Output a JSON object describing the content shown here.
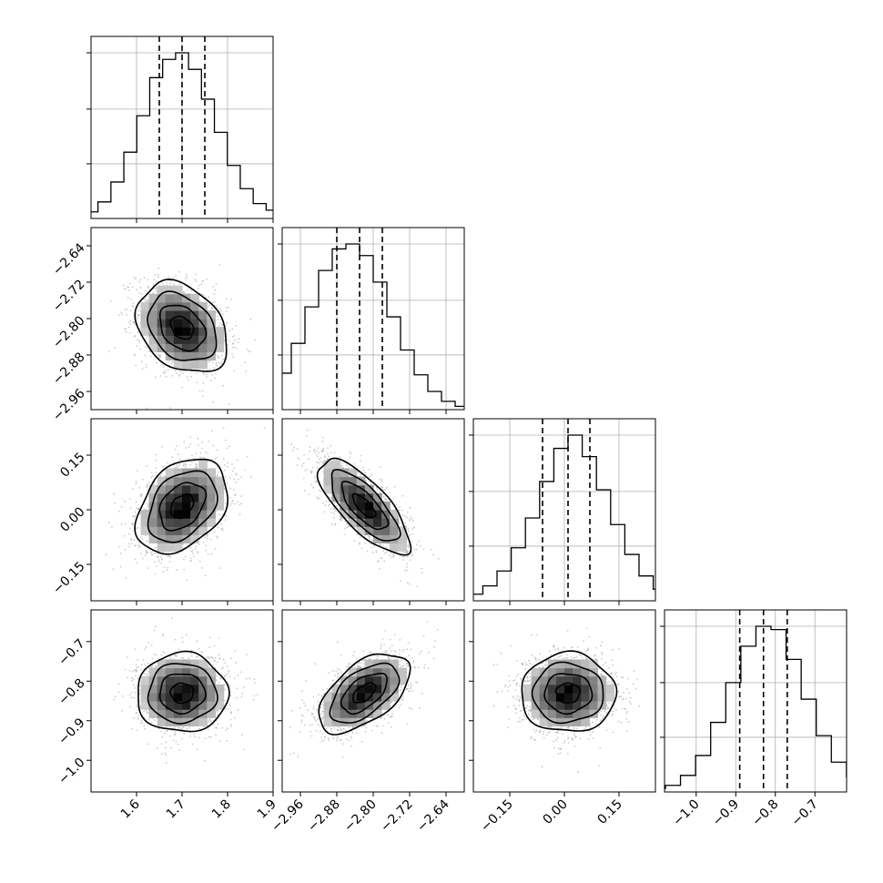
{
  "chart_data": {
    "type": "corner",
    "parameters": [
      {
        "id": "p0",
        "range": [
          1.5,
          1.9
        ],
        "ticks": [
          1.6,
          1.7,
          1.8,
          1.9
        ],
        "tick_labels": [
          "1.6",
          "1.7",
          "1.8",
          "1.9"
        ],
        "quantiles": [
          1.65,
          1.7,
          1.75
        ],
        "hist_counts": [
          1,
          2,
          4,
          10,
          22,
          40,
          62,
          85,
          96,
          100,
          90,
          72,
          52,
          32,
          18,
          9,
          5,
          2,
          1
        ]
      },
      {
        "id": "p1",
        "range": [
          -3.0,
          -2.6
        ],
        "ticks": [
          -2.96,
          -2.88,
          -2.8,
          -2.72,
          -2.64
        ],
        "tick_labels": [
          "−2.96",
          "−2.88",
          "−2.80",
          "−2.72",
          "−2.64"
        ],
        "quantiles": [
          -2.88,
          -2.83,
          -2.78
        ],
        "hist_counts": [
          2,
          4,
          10,
          22,
          40,
          62,
          84,
          97,
          100,
          93,
          77,
          56,
          36,
          21,
          11,
          5,
          2,
          1
        ]
      },
      {
        "id": "p2",
        "range": [
          -0.25,
          0.25
        ],
        "ticks": [
          -0.15,
          0.0,
          0.15
        ],
        "tick_labels": [
          "−0.15",
          "0.00",
          "0.15"
        ],
        "quantiles": [
          -0.06,
          0.01,
          0.07
        ],
        "hist_counts": [
          1,
          2,
          4,
          9,
          18,
          32,
          50,
          72,
          92,
          100,
          87,
          67,
          46,
          28,
          15,
          7,
          3,
          1
        ]
      },
      {
        "id": "p3",
        "range": [
          -1.08,
          -0.62
        ],
        "ticks": [
          -1.0,
          -0.9,
          -0.8,
          -0.7
        ],
        "tick_labels": [
          "−1.0",
          "−0.9",
          "−0.8",
          "−0.7"
        ],
        "quantiles": [
          -0.89,
          -0.83,
          -0.77
        ],
        "hist_counts": [
          1,
          2,
          4,
          10,
          22,
          42,
          66,
          88,
          100,
          98,
          80,
          56,
          34,
          18,
          9,
          4,
          2
        ]
      }
    ],
    "pairs": [
      {
        "x": "p0",
        "y": "p1",
        "mean": [
          1.7,
          -2.82
        ],
        "sd": [
          0.05,
          0.05
        ],
        "corr": -0.3
      },
      {
        "x": "p0",
        "y": "p2",
        "mean": [
          1.7,
          0.01
        ],
        "sd": [
          0.05,
          0.065
        ],
        "corr": 0.35
      },
      {
        "x": "p1",
        "y": "p2",
        "mean": [
          -2.82,
          0.01
        ],
        "sd": [
          0.05,
          0.065
        ],
        "corr": -0.75
      },
      {
        "x": "p0",
        "y": "p3",
        "mean": [
          1.7,
          -0.83
        ],
        "sd": [
          0.05,
          0.05
        ],
        "corr": 0.0
      },
      {
        "x": "p1",
        "y": "p3",
        "mean": [
          -2.82,
          -0.83
        ],
        "sd": [
          0.05,
          0.05
        ],
        "corr": 0.55
      },
      {
        "x": "p2",
        "y": "p3",
        "mean": [
          0.01,
          -0.83
        ],
        "sd": [
          0.065,
          0.05
        ],
        "corr": 0.0
      }
    ],
    "contour_levels_sigma": [
      0.5,
      1.0,
      1.5,
      2.0
    ],
    "grid": true,
    "colors": {
      "ink": "#000000",
      "grid": "#b0b0b0",
      "scatter": "#9a9a9a"
    }
  }
}
